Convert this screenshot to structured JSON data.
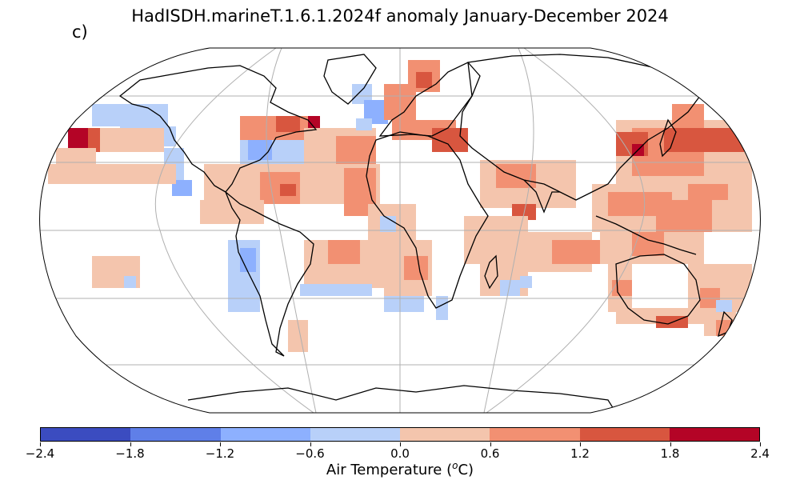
{
  "title": "HadISDH.marineT.1.6.1.2024f anomaly January-December 2024",
  "panel_label": "c)",
  "colorbar": {
    "label_prefix": "Air Temperature (",
    "label_unit_sup": "o",
    "label_suffix": "C)",
    "ticks": [
      "−2.4",
      "−1.8",
      "−1.2",
      "−0.6",
      "0.0",
      "0.6",
      "1.2",
      "1.8",
      "2.4"
    ],
    "colors": [
      "#3b4cc0",
      "#5f7fe8",
      "#8db0fe",
      "#b8d0f9",
      "#f4c5ad",
      "#f29072",
      "#d8563f",
      "#b40426"
    ]
  },
  "map": {
    "projection": "Robinson",
    "grid": true,
    "colors": {
      "blue_light": "#b8d0f9",
      "blue_mid": "#8db0fe",
      "red_light": "#f4c5ad",
      "red_mid": "#f29072",
      "red_strong": "#d8563f",
      "red_dark": "#b40426",
      "coast": "#000000",
      "grid": "#b0b0b0"
    }
  }
}
